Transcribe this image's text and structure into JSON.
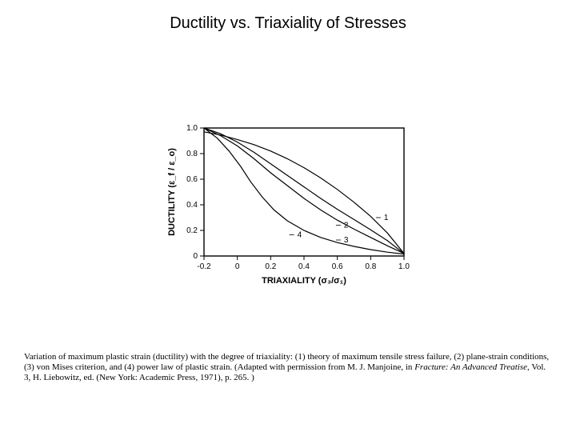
{
  "title": "Ductility vs. Triaxiality of Stresses",
  "chart": {
    "type": "line",
    "background_color": "#ffffff",
    "axis_color": "#000000",
    "line_color": "#000000",
    "line_width": 1.2,
    "xlim": [
      -0.2,
      1.0
    ],
    "ylim": [
      0.0,
      1.0
    ],
    "xticks": [
      -0.2,
      0,
      0.2,
      0.4,
      0.6,
      0.8,
      1.0
    ],
    "yticks": [
      0.0,
      0.2,
      0.4,
      0.6,
      0.8,
      1.0
    ],
    "xtick_labels": [
      "-0.2",
      "0",
      "0.2",
      "0.4",
      "0.6",
      "0.8",
      "1.0"
    ],
    "ytick_labels": [
      "0",
      "0.2",
      "0.4",
      "0.6",
      "0.8",
      "1.0"
    ],
    "x_axis_label": "TRIAXIALITY (σ₃/σ₁)",
    "y_axis_label": "DUCTILITY (ε_f / ε_o)",
    "tick_fontsize": 10,
    "axis_label_fontsize": 11,
    "series": [
      {
        "name": "1",
        "label_xy": [
          0.87,
          0.3
        ],
        "points": [
          [
            -0.2,
            0.97
          ],
          [
            -0.1,
            0.945
          ],
          [
            0.0,
            0.91
          ],
          [
            0.1,
            0.87
          ],
          [
            0.2,
            0.82
          ],
          [
            0.3,
            0.76
          ],
          [
            0.4,
            0.69
          ],
          [
            0.5,
            0.61
          ],
          [
            0.6,
            0.52
          ],
          [
            0.7,
            0.42
          ],
          [
            0.8,
            0.31
          ],
          [
            0.9,
            0.18
          ],
          [
            1.0,
            0.02
          ]
        ]
      },
      {
        "name": "2",
        "label_xy": [
          0.63,
          0.24
        ],
        "points": [
          [
            -0.2,
            1.0
          ],
          [
            -0.1,
            0.955
          ],
          [
            0.0,
            0.89
          ],
          [
            0.1,
            0.81
          ],
          [
            0.2,
            0.72
          ],
          [
            0.3,
            0.63
          ],
          [
            0.4,
            0.54
          ],
          [
            0.5,
            0.45
          ],
          [
            0.6,
            0.365
          ],
          [
            0.7,
            0.285
          ],
          [
            0.8,
            0.205
          ],
          [
            0.9,
            0.12
          ],
          [
            1.0,
            0.02
          ]
        ]
      },
      {
        "name": "3",
        "label_xy": [
          0.63,
          0.125
        ],
        "points": [
          [
            -0.2,
            1.0
          ],
          [
            -0.1,
            0.94
          ],
          [
            0.0,
            0.86
          ],
          [
            0.1,
            0.76
          ],
          [
            0.2,
            0.65
          ],
          [
            0.3,
            0.55
          ],
          [
            0.4,
            0.45
          ],
          [
            0.5,
            0.36
          ],
          [
            0.6,
            0.28
          ],
          [
            0.7,
            0.21
          ],
          [
            0.8,
            0.145
          ],
          [
            0.9,
            0.08
          ],
          [
            1.0,
            0.02
          ]
        ]
      },
      {
        "name": "4",
        "label_xy": [
          0.35,
          0.165
        ],
        "points": [
          [
            -0.2,
            1.0
          ],
          [
            -0.12,
            0.92
          ],
          [
            -0.05,
            0.82
          ],
          [
            0.02,
            0.7
          ],
          [
            0.08,
            0.58
          ],
          [
            0.15,
            0.46
          ],
          [
            0.22,
            0.36
          ],
          [
            0.3,
            0.275
          ],
          [
            0.4,
            0.2
          ],
          [
            0.5,
            0.145
          ],
          [
            0.6,
            0.105
          ],
          [
            0.7,
            0.075
          ],
          [
            0.8,
            0.05
          ],
          [
            0.9,
            0.03
          ],
          [
            1.0,
            0.015
          ]
        ]
      }
    ]
  },
  "caption": {
    "pre": "Variation of maximum plastic strain (ductility) with the degree of triaxiality: (1) theory of maximum tensile stress failure, (2) plane-strain conditions, (3) von Mises criterion, and (4) power law of plastic strain. (Adapted with permission from M. J. Manjoine, in ",
    "ital": "Fracture: An Advanced Treatise",
    "post": ", Vol. 3, H. Liebowitz, ed. (New York: Academic Press, 1971), p. 265. )"
  }
}
